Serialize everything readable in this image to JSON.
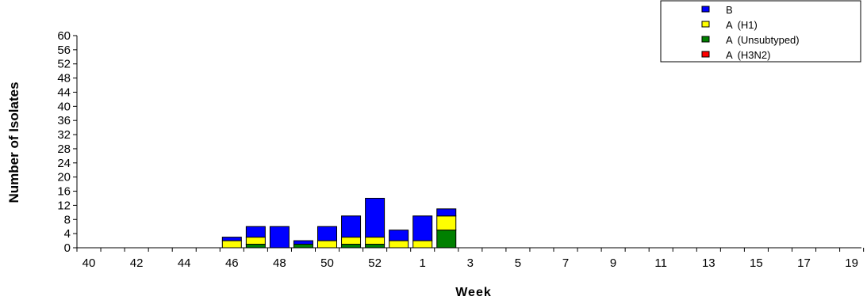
{
  "chart_data": {
    "type": "bar",
    "stacked": true,
    "xlabel": "Week",
    "ylabel": "Number of Isolates",
    "ylim": [
      0,
      60
    ],
    "yticks": [
      0,
      4,
      8,
      12,
      16,
      20,
      24,
      28,
      32,
      36,
      40,
      44,
      48,
      52,
      56,
      60
    ],
    "categories": [
      "40",
      "41",
      "42",
      "43",
      "44",
      "45",
      "46",
      "47",
      "48",
      "49",
      "50",
      "51",
      "52",
      "53",
      "1",
      "2",
      "3",
      "4",
      "5",
      "6",
      "7",
      "8",
      "9",
      "10",
      "11",
      "12",
      "13",
      "14",
      "15",
      "16",
      "17",
      "18",
      "19",
      "20"
    ],
    "xtick_labels": [
      "40",
      "42",
      "44",
      "46",
      "48",
      "50",
      "52",
      "1",
      "3",
      "5",
      "7",
      "9",
      "11",
      "13",
      "15",
      "17",
      "19"
    ],
    "series": [
      {
        "name": "A (H3N2)",
        "color": "#ff0000",
        "values": [
          0,
          0,
          0,
          0,
          0,
          0,
          0,
          0,
          0,
          0,
          0,
          0,
          0,
          0,
          0,
          0,
          0,
          0,
          0,
          0,
          0,
          0,
          0,
          0,
          0,
          0,
          0,
          0,
          0,
          0,
          0,
          0,
          0,
          0
        ]
      },
      {
        "name": "A (Unsubtyped)",
        "color": "#008000",
        "values": [
          0,
          0,
          0,
          0,
          0,
          0,
          0,
          1,
          0,
          1,
          0,
          1,
          1,
          0,
          0,
          5,
          0,
          0,
          0,
          0,
          0,
          0,
          0,
          0,
          0,
          0,
          0,
          0,
          0,
          0,
          0,
          0,
          0,
          0
        ]
      },
      {
        "name": "A (H1)",
        "color": "#ffff00",
        "values": [
          0,
          0,
          0,
          0,
          0,
          0,
          2,
          2,
          0,
          0,
          2,
          2,
          2,
          2,
          2,
          4,
          0,
          0,
          0,
          0,
          0,
          0,
          0,
          0,
          0,
          0,
          0,
          0,
          0,
          0,
          0,
          0,
          0,
          0
        ]
      },
      {
        "name": "B",
        "color": "#0000ff",
        "values": [
          0,
          0,
          0,
          0,
          0,
          0,
          1,
          3,
          6,
          1,
          4,
          6,
          11,
          3,
          7,
          2,
          0,
          0,
          0,
          0,
          0,
          0,
          0,
          0,
          0,
          0,
          0,
          0,
          0,
          0,
          0,
          0,
          0,
          0
        ]
      }
    ],
    "legend": {
      "placement": "top-right",
      "entries": [
        {
          "label": "B",
          "color": "#0000ff"
        },
        {
          "label": "A (H1)",
          "color": "#ffff00"
        },
        {
          "label": "A (Unsubtyped)",
          "color": "#008000"
        },
        {
          "label": "A (H3N2)",
          "color": "#ff0000"
        }
      ]
    },
    "grid": false
  }
}
